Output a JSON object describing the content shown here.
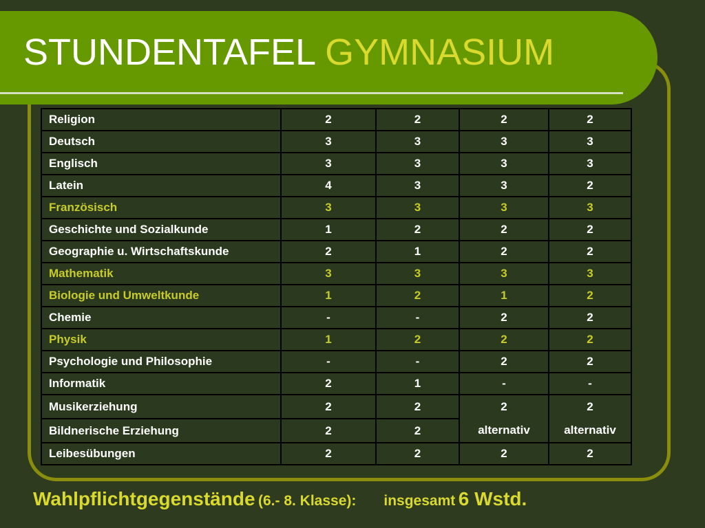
{
  "title": {
    "part1": "STUNDENTAFEL",
    "part2": "GYMNASIUM"
  },
  "table": {
    "rows": [
      {
        "subject": "Religion",
        "values": [
          "2",
          "2",
          "2",
          "2"
        ]
      },
      {
        "subject": "Deutsch",
        "values": [
          "3",
          "3",
          "3",
          "3"
        ]
      },
      {
        "subject": "Englisch",
        "values": [
          "3",
          "3",
          "3",
          "3"
        ]
      },
      {
        "subject": "Latein",
        "values": [
          "4",
          "3",
          "3",
          "2"
        ]
      },
      {
        "subject": "Französisch",
        "values": [
          "3",
          "3",
          "3",
          "3"
        ],
        "highlight": true
      },
      {
        "subject": "Geschichte und Sozialkunde",
        "values": [
          "1",
          "2",
          "2",
          "2"
        ]
      },
      {
        "subject": "Geographie u. Wirtschaftskunde",
        "values": [
          "2",
          "1",
          "2",
          "2"
        ]
      },
      {
        "subject": "Mathematik",
        "values": [
          "3",
          "3",
          "3",
          "3"
        ],
        "highlight": true
      },
      {
        "subject": "Biologie und Umweltkunde",
        "values": [
          "1",
          "2",
          "1",
          "2"
        ],
        "highlight": true
      },
      {
        "subject": "Chemie",
        "values": [
          "-",
          "-",
          "2",
          "2"
        ]
      },
      {
        "subject": "Physik",
        "values": [
          "1",
          "2",
          "2",
          "2"
        ],
        "highlight": true
      },
      {
        "subject": "Psychologie und Philosophie",
        "values": [
          "-",
          "-",
          "2",
          "2"
        ]
      },
      {
        "subject": "Informatik",
        "values": [
          "2",
          "1",
          "-",
          "-"
        ]
      },
      {
        "subject": "Musikerziehung",
        "values": [
          "2",
          "2"
        ]
      },
      {
        "subject": "Bildnerische Erziehung",
        "values": [
          "2",
          "2"
        ]
      },
      {
        "subject": "Leibesübungen",
        "values": [
          "2",
          "2",
          "2",
          "2"
        ]
      }
    ],
    "merged": {
      "col3_value": "2",
      "col3_note": "alternativ",
      "col4_value": "2",
      "col4_note": "alternativ"
    }
  },
  "footer": {
    "main": "Wahlpflichtgegenstände",
    "sub": "(6.- 8. Klasse):",
    "label": "insgesamt",
    "value": "6 Wstd."
  },
  "colors": {
    "background": "#2e3b1f",
    "title_bar": "#669900",
    "accent_yellow": "#d9d92e",
    "highlight_text": "#c8cc2a",
    "frame": "#8a8e0c"
  }
}
